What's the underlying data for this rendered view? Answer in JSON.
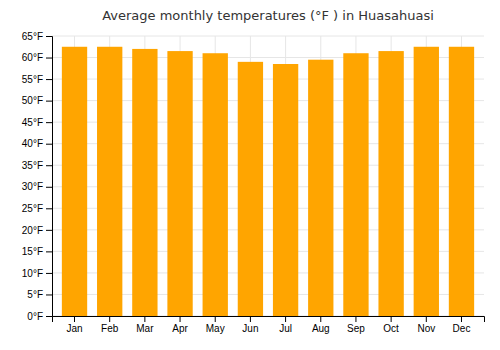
{
  "chart_data": {
    "type": "bar",
    "title": "Average monthly temperatures (°F ) in Huasahuasi",
    "categories": [
      "Jan",
      "Feb",
      "Mar",
      "Apr",
      "May",
      "Jun",
      "Jul",
      "Aug",
      "Sep",
      "Oct",
      "Nov",
      "Dec"
    ],
    "values": [
      62.5,
      62.5,
      62.0,
      61.5,
      61.0,
      59.0,
      58.5,
      59.5,
      61.0,
      61.5,
      62.5,
      62.5
    ],
    "color": "#FFA500",
    "ylim": [
      0,
      65
    ],
    "yticks": [
      {
        "value": 0,
        "label": "0°F"
      },
      {
        "value": 5,
        "label": "5°F"
      },
      {
        "value": 10,
        "label": "10°F"
      },
      {
        "value": 15,
        "label": "15°F"
      },
      {
        "value": 20,
        "label": "20°F"
      },
      {
        "value": 25,
        "label": "25°F"
      },
      {
        "value": 30,
        "label": "30°F"
      },
      {
        "value": 35,
        "label": "35°F"
      },
      {
        "value": 40,
        "label": "40°F"
      },
      {
        "value": 45,
        "label": "45°F"
      },
      {
        "value": 50,
        "label": "50°F"
      },
      {
        "value": 55,
        "label": "55°F"
      },
      {
        "value": 60,
        "label": "60°F"
      },
      {
        "value": 65,
        "label": "65°F"
      }
    ],
    "grid": true
  }
}
